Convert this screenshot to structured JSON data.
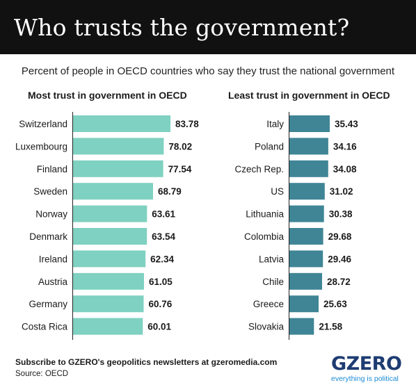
{
  "header": {
    "title": "Who trusts the government?"
  },
  "subtitle": "Percent of people in OECD countries who say they trust the national government",
  "colors": {
    "most": "#7fd1c1",
    "least": "#3f8596",
    "header_bg": "#111111"
  },
  "chart_data": [
    {
      "type": "bar",
      "orientation": "horizontal",
      "title": "Most trust in government in OECD",
      "categories": [
        "Switzerland",
        "Luxembourg",
        "Finland",
        "Sweden",
        "Norway",
        "Denmark",
        "Ireland",
        "Austria",
        "Germany",
        "Costa Rica"
      ],
      "values": [
        83.78,
        78.02,
        77.54,
        68.79,
        63.61,
        63.54,
        62.34,
        61.05,
        60.76,
        60.01
      ],
      "value_labels": [
        "83.78",
        "78.02",
        "77.54",
        "68.79",
        "63.61",
        "63.54",
        "62.34",
        "61.05",
        "60.76",
        "60.01"
      ],
      "xlim": [
        0,
        83.78
      ],
      "grid": false
    },
    {
      "type": "bar",
      "orientation": "horizontal",
      "title": "Least trust in government in OECD",
      "categories": [
        "Italy",
        "Poland",
        "Czech Rep.",
        "US",
        "Lithuania",
        "Colombia",
        "Latvia",
        "Chile",
        "Greece",
        "Slovakia"
      ],
      "values": [
        35.43,
        34.16,
        34.08,
        31.02,
        30.38,
        29.68,
        29.46,
        28.72,
        25.63,
        21.58
      ],
      "value_labels": [
        "35.43",
        "34.16",
        "34.08",
        "31.02",
        "30.38",
        "29.68",
        "29.46",
        "28.72",
        "25.63",
        "21.58"
      ],
      "xlim": [
        0,
        35.43
      ],
      "grid": false
    }
  ],
  "footer": {
    "subscribe": "Subscribe to GZERO's geopolitics newsletters at gzeromedia.com",
    "source": "Source: OECD"
  },
  "logo": {
    "word": "GZERO",
    "tagline": "everything is political"
  }
}
